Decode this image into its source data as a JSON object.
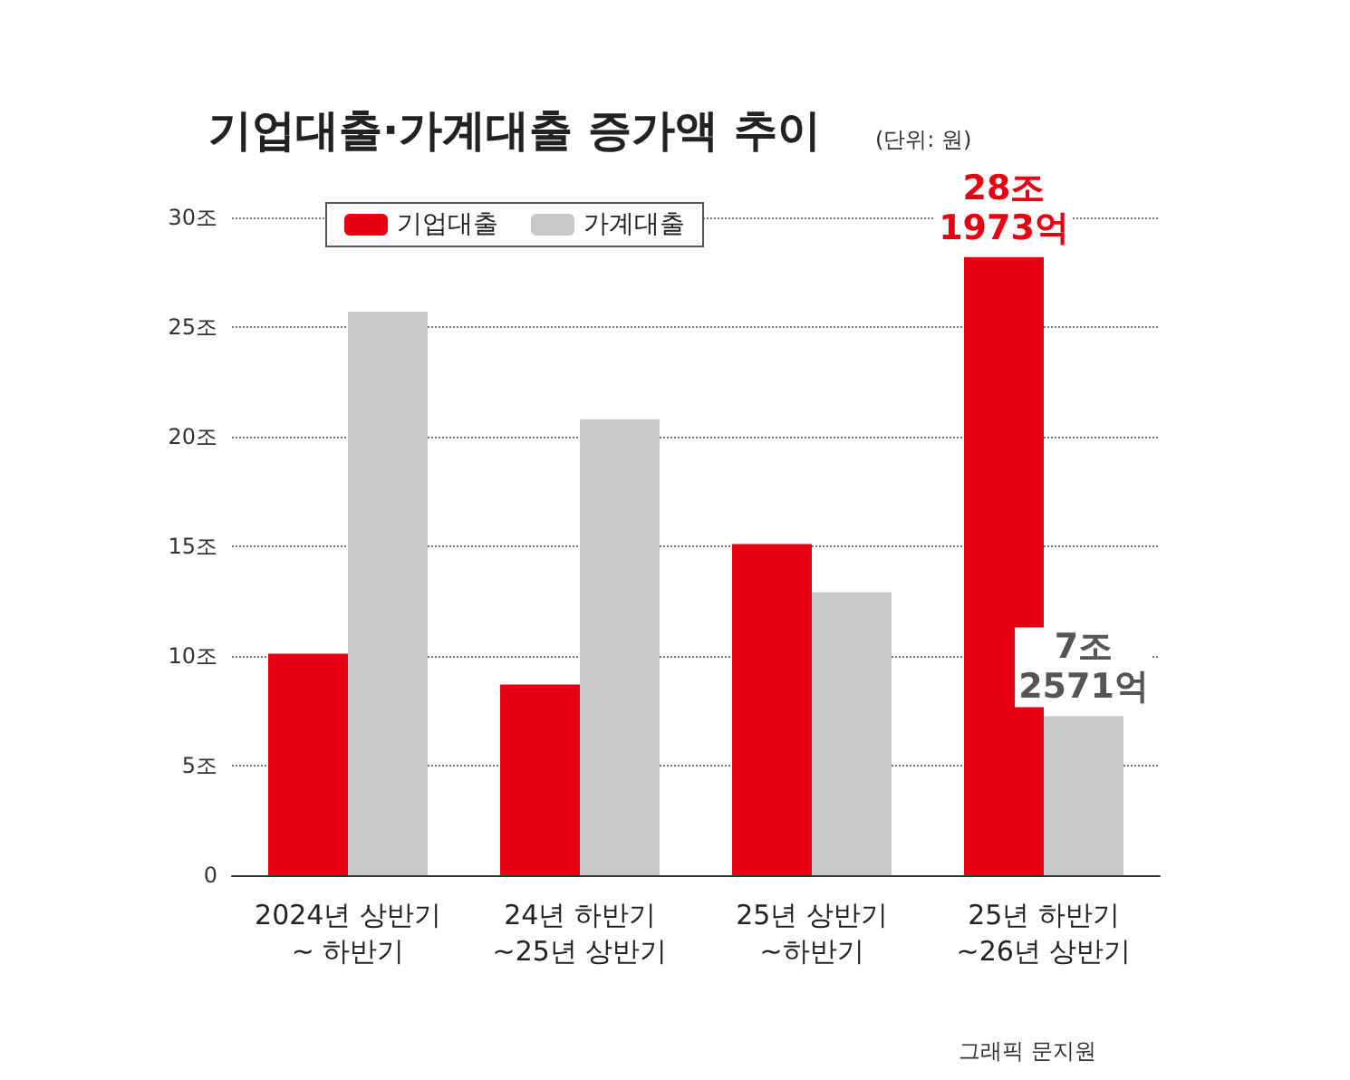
{
  "chart_data": {
    "type": "bar",
    "title": "기업대출·가계대출 증가액 추이",
    "subtitle": "(단위: 원)",
    "categories": [
      "2024년 상반기\n~ 하반기",
      "24년 하반기\n~25년 상반기",
      "25년 상반기\n~하반기",
      "25년 하반기\n~26년 상반기"
    ],
    "series": [
      {
        "name": "기업대출",
        "color": "#e60012",
        "values": [
          10.1,
          8.7,
          15.1,
          28.1973
        ],
        "value_labels": [
          null,
          null,
          null,
          "28조\n1973억"
        ]
      },
      {
        "name": "가계대출",
        "color": "#c8c8c8",
        "values": [
          25.7,
          20.8,
          12.9,
          7.2571
        ],
        "value_labels": [
          null,
          null,
          null,
          "7조\n2571억"
        ]
      }
    ],
    "ylim": [
      0,
      30
    ],
    "yticks": [
      0,
      {
        "value": 5,
        "label": "5조"
      },
      {
        "value": 10,
        "label": "10조"
      },
      {
        "value": 15,
        "label": "15조"
      },
      {
        "value": 20,
        "label": "20조"
      },
      {
        "value": 25,
        "label": "25조"
      },
      {
        "value": 30,
        "label": "30조"
      }
    ],
    "grid": "y",
    "legend": "top left",
    "annotations": [
      "그래픽 문지원"
    ]
  }
}
